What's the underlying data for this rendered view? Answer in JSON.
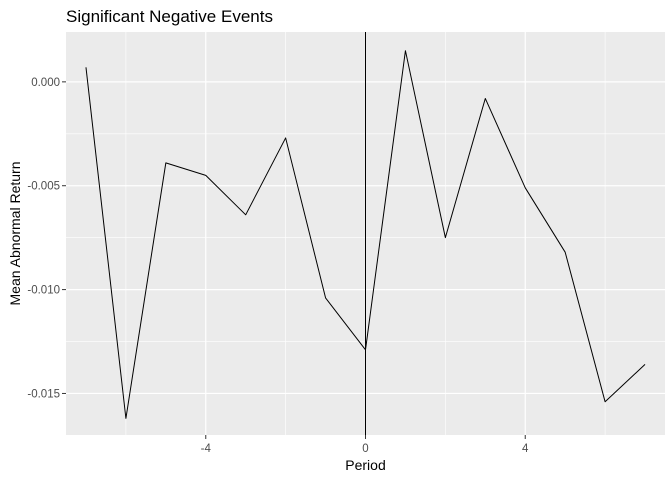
{
  "chart_data": {
    "type": "line",
    "title": "Significant Negative Events",
    "xlabel": "Period",
    "ylabel": "Mean Abnormal Return",
    "xlim": [
      -7.5,
      7.5
    ],
    "ylim": [
      -0.017,
      0.0024
    ],
    "xticks": [
      -4,
      0,
      4
    ],
    "xtick_labels": [
      "-4",
      "0",
      "4"
    ],
    "xminor": [
      -6,
      -2,
      2,
      6
    ],
    "yticks": [
      0.0,
      -0.005,
      -0.01,
      -0.015
    ],
    "ytick_labels": [
      "0.000",
      "-0.005",
      "-0.010",
      "-0.015"
    ],
    "yminor": [
      -0.0025,
      -0.0075,
      -0.0125
    ],
    "vline_x": 0,
    "grid": true,
    "background_color": "#ebebeb",
    "gridline_color": "#ffffff",
    "line_color": "#000000",
    "series": [
      {
        "x": [
          -7,
          -6,
          -5,
          -4,
          -3,
          -2,
          -1,
          0,
          1,
          2,
          3,
          4,
          5,
          6,
          7
        ],
        "y": [
          0.0007,
          -0.0162,
          -0.0039,
          -0.0045,
          -0.0064,
          -0.0027,
          -0.0104,
          -0.0129,
          0.0015,
          -0.0075,
          -0.0008,
          -0.0051,
          -0.0082,
          -0.0154,
          -0.0136
        ]
      }
    ]
  }
}
